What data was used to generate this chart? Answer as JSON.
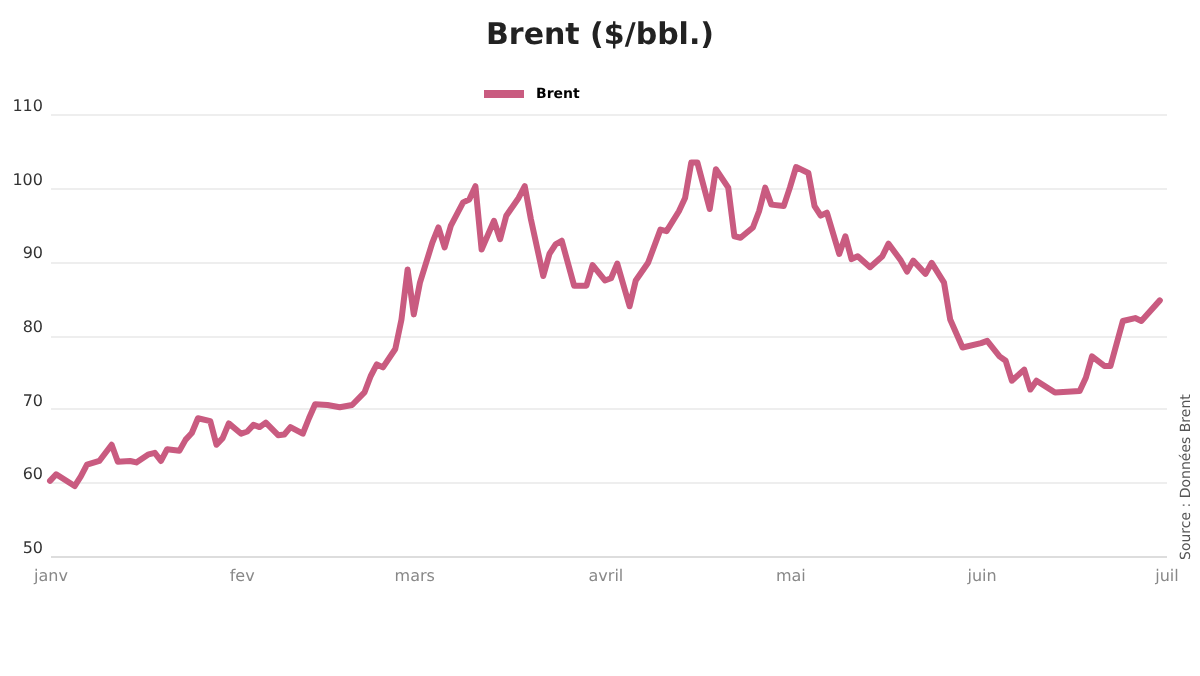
{
  "chart_data": {
    "type": "line",
    "title": "Brent ($/bbl.)",
    "x": [
      "--01-01",
      "--01-02",
      "--01-05",
      "--01-06",
      "--01-07",
      "--01-09",
      "--01-11",
      "--01-12",
      "--01-14",
      "--01-15",
      "--01-17",
      "--01-18",
      "--01-19",
      "--01-20",
      "--01-22",
      "--01-23",
      "--01-24",
      "--01-25",
      "--01-27",
      "--01-28",
      "--01-29",
      "--01-30",
      "--02-01",
      "--02-02",
      "--02-03",
      "--02-04",
      "--02-05",
      "--02-07",
      "--02-08",
      "--02-09",
      "--02-11",
      "--02-12",
      "--02-13",
      "--02-15",
      "--02-17",
      "--02-19",
      "--02-21",
      "--02-22",
      "--02-23",
      "--02-24",
      "--02-26",
      "--02-27",
      "--02-28",
      "--03-01",
      "--03-02",
      "--03-04",
      "--03-05",
      "--03-06",
      "--03-07",
      "--03-09",
      "--03-10",
      "--03-11",
      "--03-12",
      "--03-14",
      "--03-15",
      "--03-16",
      "--03-18",
      "--03-19",
      "--03-20",
      "--03-22",
      "--03-23",
      "--03-24",
      "--03-25",
      "--03-27",
      "--03-29",
      "--03-30",
      "--04-01",
      "--04-02",
      "--04-03",
      "--04-05",
      "--04-06",
      "--04-08",
      "--04-10",
      "--04-11",
      "--04-13",
      "--04-14",
      "--04-15",
      "--04-16",
      "--04-18",
      "--04-19",
      "--04-21",
      "--04-22",
      "--04-23",
      "--04-25",
      "--04-26",
      "--04-27",
      "--04-28",
      "--04-30",
      "--05-01",
      "--05-02",
      "--05-04",
      "--05-05",
      "--05-06",
      "--05-07",
      "--05-09",
      "--05-10",
      "--05-11",
      "--05-12",
      "--05-14",
      "--05-16",
      "--05-17",
      "--05-19",
      "--05-20",
      "--05-21",
      "--05-23",
      "--05-24",
      "--05-26",
      "--05-27",
      "--05-29",
      "--06-01",
      "--06-02",
      "--06-04",
      "--06-05",
      "--06-06",
      "--06-08",
      "--06-09",
      "--06-10",
      "--06-13",
      "--06-17",
      "--06-18",
      "--06-19",
      "--06-21",
      "--06-22",
      "--06-24",
      "--06-26",
      "--06-27",
      "--06-30"
    ],
    "series": [
      {
        "name": "Brent",
        "color": "#c95b80",
        "values": [
          60.2,
          61.1,
          59.5,
          60.8,
          62.4,
          62.9,
          65.1,
          62.8,
          62.9,
          62.7,
          63.8,
          64.0,
          62.9,
          64.5,
          64.3,
          65.8,
          66.7,
          68.7,
          68.3,
          65.1,
          66.0,
          68.0,
          66.6,
          66.9,
          67.8,
          67.5,
          68.1,
          66.4,
          66.5,
          67.5,
          66.6,
          68.7,
          70.6,
          70.5,
          70.2,
          70.5,
          72.2,
          74.4,
          76.0,
          75.6,
          78.1,
          82.1,
          88.9,
          82.8,
          87.1,
          92.5,
          94.6,
          91.9,
          94.8,
          98.0,
          98.4,
          100.2,
          91.6,
          95.5,
          93.0,
          96.2,
          98.6,
          100.2,
          95.7,
          88.0,
          91.0,
          92.3,
          92.8,
          86.7,
          86.7,
          89.5,
          87.4,
          87.7,
          89.7,
          83.9,
          87.4,
          89.8,
          94.3,
          94.1,
          96.8,
          98.6,
          103.4,
          103.4,
          97.1,
          102.5,
          100.0,
          93.4,
          93.2,
          94.6,
          96.8,
          100.0,
          97.7,
          97.5,
          100.0,
          102.8,
          102.0,
          97.5,
          96.2,
          96.6,
          91.0,
          93.4,
          90.3,
          90.7,
          89.2,
          90.7,
          92.4,
          90.1,
          88.6,
          90.1,
          88.3,
          89.8,
          87.1,
          82.1,
          78.3,
          78.9,
          79.2,
          77.1,
          76.5,
          73.8,
          75.3,
          72.6,
          73.8,
          72.2,
          72.4,
          74.2,
          77.1,
          75.8,
          75.8,
          81.9,
          82.3,
          81.9,
          84.7
        ]
      }
    ],
    "xlim": [
      "--01-01",
      "--07-01"
    ],
    "xticks": [
      {
        "value": "--01-01",
        "label": "janv"
      },
      {
        "value": "--02-01",
        "label": "fev"
      },
      {
        "value": "--03-01",
        "label": "mars"
      },
      {
        "value": "--04-01",
        "label": "avril"
      },
      {
        "value": "--05-01",
        "label": "mai"
      },
      {
        "value": "--06-01",
        "label": "juin"
      },
      {
        "value": "--07-01",
        "label": "juil"
      }
    ],
    "ylim": [
      50,
      110
    ],
    "yticks": [
      50,
      60,
      70,
      80,
      90,
      100,
      110
    ],
    "grid": "y",
    "legend": "top",
    "marker": "none",
    "line_style": "solid",
    "annotations": [
      "Source : Données Brent"
    ]
  }
}
